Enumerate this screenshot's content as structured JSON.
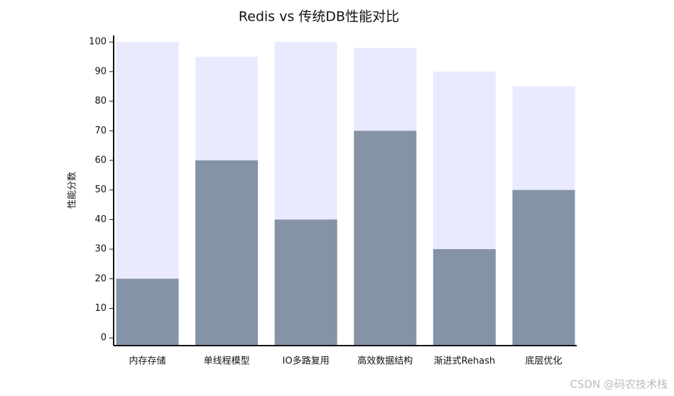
{
  "chart_data": {
    "type": "bar",
    "title": "Redis vs 传统DB性能对比",
    "y_label": "性能分数",
    "categories": [
      "内存存储",
      "单线程模型",
      "IO多路复用",
      "高效数据结构",
      "渐进式Rehash",
      "底层优化"
    ],
    "series": [
      {
        "color": "#eaeaff",
        "values": [
          100,
          95,
          100,
          98,
          90,
          85
        ]
      },
      {
        "color": "#8493a6",
        "values": [
          20,
          60,
          40,
          70,
          30,
          50
        ]
      }
    ],
    "ylim": [
      -2.6,
      102.2
    ],
    "yticks": [
      0,
      10,
      20,
      30,
      40,
      50,
      60,
      70,
      80,
      90,
      100
    ],
    "grid": false
  },
  "watermark": "CSDN @码农技术栈"
}
